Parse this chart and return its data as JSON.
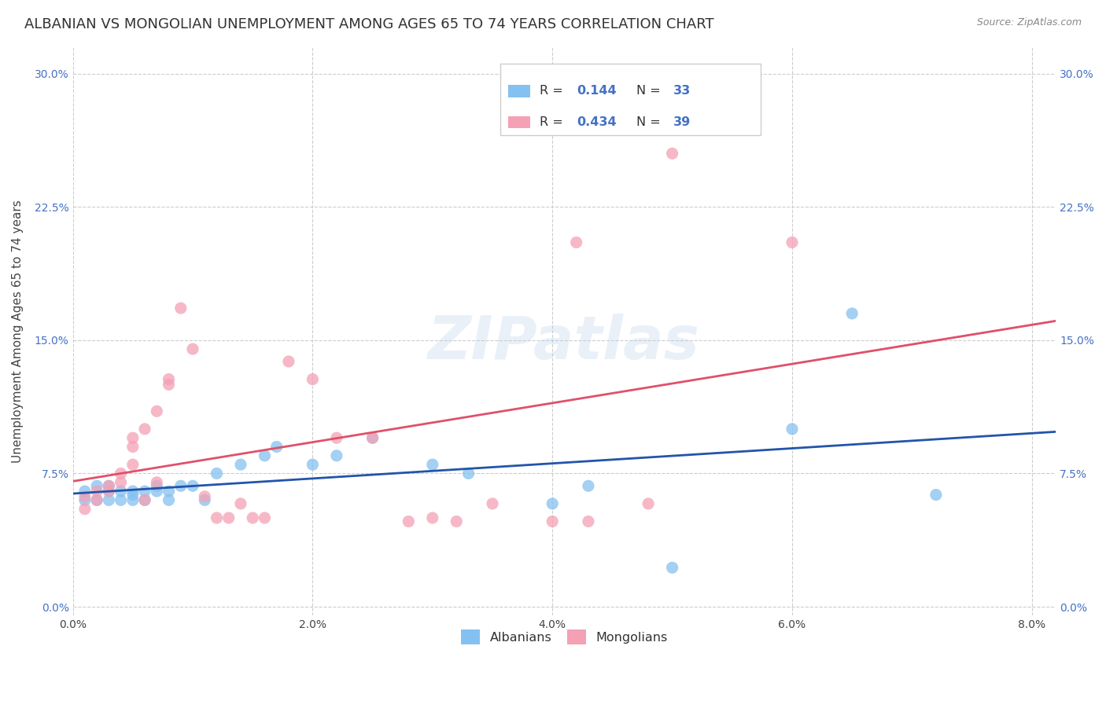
{
  "title": "ALBANIAN VS MONGOLIAN UNEMPLOYMENT AMONG AGES 65 TO 74 YEARS CORRELATION CHART",
  "source": "Source: ZipAtlas.com",
  "ylabel": "Unemployment Among Ages 65 to 74 years",
  "xlabel_ticks": [
    "0.0%",
    "2.0%",
    "4.0%",
    "6.0%",
    "8.0%"
  ],
  "xlabel_vals": [
    0.0,
    0.02,
    0.04,
    0.06,
    0.08
  ],
  "ylabel_ticks": [
    "0.0%",
    "7.5%",
    "15.0%",
    "22.5%",
    "30.0%"
  ],
  "ylabel_vals": [
    0.0,
    0.075,
    0.15,
    0.225,
    0.3
  ],
  "xlim": [
    0.0,
    0.082
  ],
  "ylim": [
    -0.005,
    0.315
  ],
  "albanian_color": "#85C1F0",
  "mongolian_color": "#F4A0B5",
  "albanian_line_color": "#2255AA",
  "mongolian_line_color": "#E0506A",
  "background_color": "#ffffff",
  "watermark": "ZIPatlas",
  "albanian_x": [
    0.001,
    0.001,
    0.002,
    0.002,
    0.003,
    0.003,
    0.003,
    0.004,
    0.004,
    0.005,
    0.005,
    0.005,
    0.006,
    0.006,
    0.007,
    0.007,
    0.008,
    0.008,
    0.009,
    0.01,
    0.011,
    0.012,
    0.014,
    0.016,
    0.017,
    0.02,
    0.022,
    0.025,
    0.03,
    0.033,
    0.04,
    0.043,
    0.05,
    0.06,
    0.065,
    0.072
  ],
  "albanian_y": [
    0.065,
    0.06,
    0.068,
    0.06,
    0.06,
    0.065,
    0.068,
    0.06,
    0.065,
    0.06,
    0.063,
    0.065,
    0.065,
    0.06,
    0.068,
    0.065,
    0.065,
    0.06,
    0.068,
    0.068,
    0.06,
    0.075,
    0.08,
    0.085,
    0.09,
    0.08,
    0.085,
    0.095,
    0.08,
    0.075,
    0.058,
    0.068,
    0.022,
    0.1,
    0.165,
    0.063
  ],
  "mongolian_x": [
    0.001,
    0.001,
    0.002,
    0.002,
    0.003,
    0.003,
    0.004,
    0.004,
    0.005,
    0.005,
    0.005,
    0.006,
    0.006,
    0.007,
    0.007,
    0.008,
    0.008,
    0.009,
    0.01,
    0.011,
    0.012,
    0.013,
    0.014,
    0.015,
    0.016,
    0.018,
    0.02,
    0.022,
    0.025,
    0.028,
    0.03,
    0.032,
    0.035,
    0.04,
    0.042,
    0.043,
    0.048,
    0.05,
    0.06
  ],
  "mongolian_y": [
    0.062,
    0.055,
    0.065,
    0.06,
    0.065,
    0.068,
    0.07,
    0.075,
    0.08,
    0.09,
    0.095,
    0.1,
    0.06,
    0.07,
    0.11,
    0.125,
    0.128,
    0.168,
    0.145,
    0.062,
    0.05,
    0.05,
    0.058,
    0.05,
    0.05,
    0.138,
    0.128,
    0.095,
    0.095,
    0.048,
    0.05,
    0.048,
    0.058,
    0.048,
    0.205,
    0.048,
    0.058,
    0.255,
    0.205
  ],
  "grid_color": "#cccccc",
  "title_fontsize": 13,
  "axis_label_fontsize": 11,
  "tick_fontsize": 10,
  "tick_color_blue": "#4472C4",
  "tick_color_dark": "#444444"
}
